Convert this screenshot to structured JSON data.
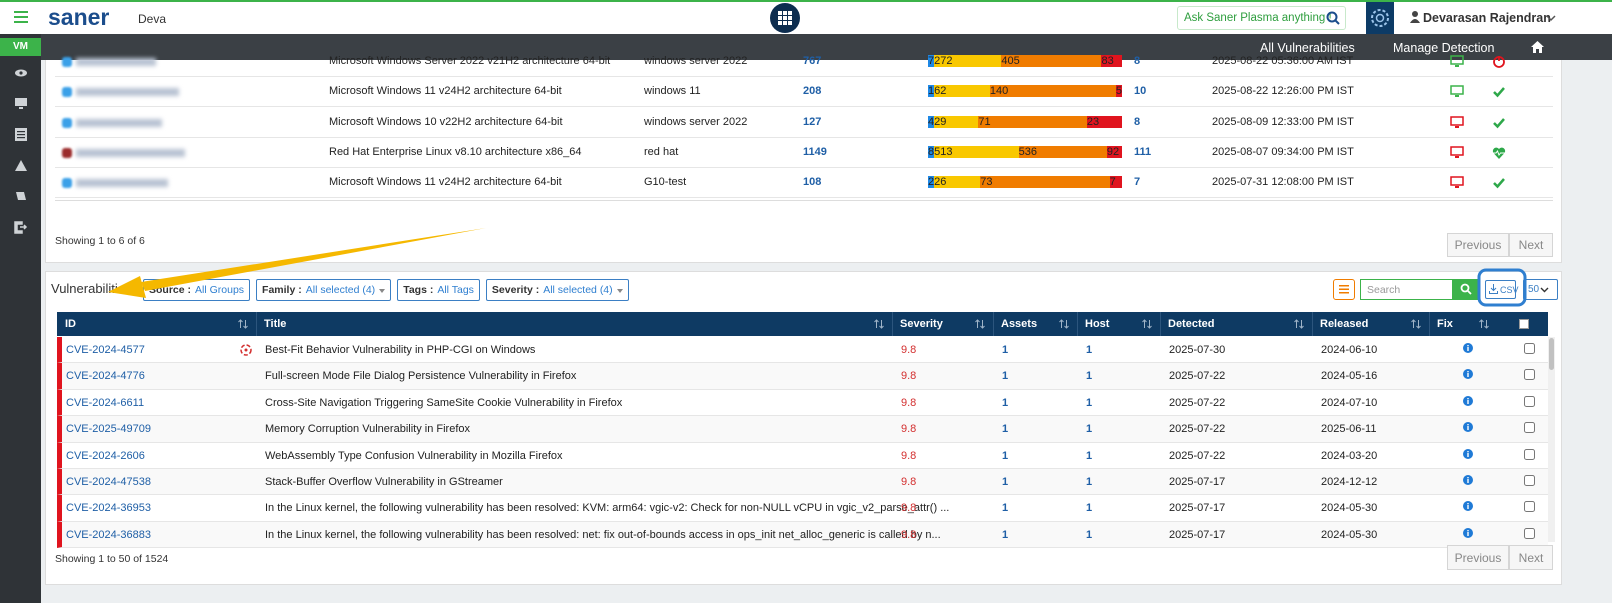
{
  "header": {
    "brand": "saner",
    "org": "Deva",
    "ask": "Ask Saner Plasma anything !",
    "user": "Devarasan Rajendran"
  },
  "sidebar": {
    "module": "VM"
  },
  "nav": [
    "All Vulnerabilities",
    "Manage Detection"
  ],
  "devices": {
    "rows": [
      {
        "os": "Microsoft Windows Server 2022 v21H2 architecture 64-bit",
        "group": "windows server 2022",
        "vulns": 767,
        "severity": [
          7,
          272,
          405,
          83
        ],
        "count": 8,
        "last_seen": "2025-08-22 05:36:00 AM IST"
      },
      {
        "os": "Microsoft Windows 11 v24H2 architecture 64-bit",
        "group": "windows 11",
        "vulns": 208,
        "severity": [
          1,
          62,
          140,
          5
        ],
        "count": 10,
        "last_seen": "2025-08-22 12:26:00 PM IST"
      },
      {
        "os": "Microsoft Windows 10 v22H2 architecture 64-bit",
        "group": "windows server 2022",
        "vulns": 127,
        "severity": [
          4,
          29,
          71,
          23
        ],
        "count": 8,
        "last_seen": "2025-08-09 12:33:00 PM IST"
      },
      {
        "os": "Red Hat Enterprise Linux v8.10 architecture x86_64",
        "group": "red hat",
        "vulns": 1149,
        "severity": [
          8,
          513,
          536,
          92
        ],
        "count": 111,
        "last_seen": "2025-08-07 09:34:00 PM IST"
      },
      {
        "os": "Microsoft Windows 11 v24H2 architecture 64-bit",
        "group": "G10-test",
        "vulns": 108,
        "severity": [
          2,
          26,
          73,
          7
        ],
        "count": 7,
        "last_seen": "2025-07-31 12:08:00 PM IST"
      }
    ],
    "footer": "Showing 1 to 6 of 6",
    "pager": [
      "Previous",
      "Next"
    ]
  },
  "vulnerabilities": {
    "title": "Vulnerabilities",
    "filters": [
      {
        "label": "Source :",
        "value": "All Groups"
      },
      {
        "label": "Family :",
        "value": "All selected (4)"
      },
      {
        "label": "Tags :",
        "value": "All Tags"
      },
      {
        "label": "Severity :",
        "value": "All selected (4)"
      }
    ],
    "search_placeholder": "Search",
    "export": "CSV",
    "page_size": "50",
    "columns": [
      "ID",
      "Title",
      "Severity",
      "Assets",
      "Host",
      "Detected",
      "Released",
      "Fix"
    ],
    "rows": [
      {
        "id": "CVE-2024-4577",
        "title": "Best-Fit Behavior Vulnerability in PHP-CGI on Windows",
        "severity": 9.8,
        "assets": 1,
        "host": 1,
        "detected": "2025-07-30",
        "released": "2024-06-10"
      },
      {
        "id": "CVE-2024-4776",
        "title": "Full-screen Mode File Dialog Persistence Vulnerability in Firefox",
        "severity": 9.8,
        "assets": 1,
        "host": 1,
        "detected": "2025-07-22",
        "released": "2024-05-16"
      },
      {
        "id": "CVE-2024-6611",
        "title": "Cross-Site Navigation Triggering SameSite Cookie Vulnerability in Firefox",
        "severity": 9.8,
        "assets": 1,
        "host": 1,
        "detected": "2025-07-22",
        "released": "2024-07-10"
      },
      {
        "id": "CVE-2025-49709",
        "title": "Memory Corruption Vulnerability in Firefox",
        "severity": 9.8,
        "assets": 1,
        "host": 1,
        "detected": "2025-07-22",
        "released": "2025-06-11"
      },
      {
        "id": "CVE-2024-2606",
        "title": "WebAssembly Type Confusion Vulnerability in Mozilla Firefox",
        "severity": 9.8,
        "assets": 1,
        "host": 1,
        "detected": "2025-07-22",
        "released": "2024-03-20"
      },
      {
        "id": "CVE-2024-47538",
        "title": "Stack-Buffer Overflow Vulnerability in GStreamer",
        "severity": 9.8,
        "assets": 1,
        "host": 1,
        "detected": "2025-07-17",
        "released": "2024-12-12"
      },
      {
        "id": "CVE-2024-36953",
        "title": "In the Linux kernel, the following vulnerability has been resolved: KVM: arm64: vgic-v2: Check for non-NULL vCPU in vgic_v2_parse_attr() ...",
        "severity": 9.8,
        "assets": 1,
        "host": 1,
        "detected": "2025-07-17",
        "released": "2024-05-30"
      },
      {
        "id": "CVE-2024-36883",
        "title": "In the Linux kernel, the following vulnerability has been resolved: net: fix out-of-bounds access in ops_init net_alloc_generic is called by n...",
        "severity": 9.8,
        "assets": 1,
        "host": 1,
        "detected": "2025-07-17",
        "released": "2024-05-30"
      }
    ],
    "footer": "Showing 1 to 50 of 1524",
    "pager": [
      "Previous",
      "Next"
    ]
  }
}
